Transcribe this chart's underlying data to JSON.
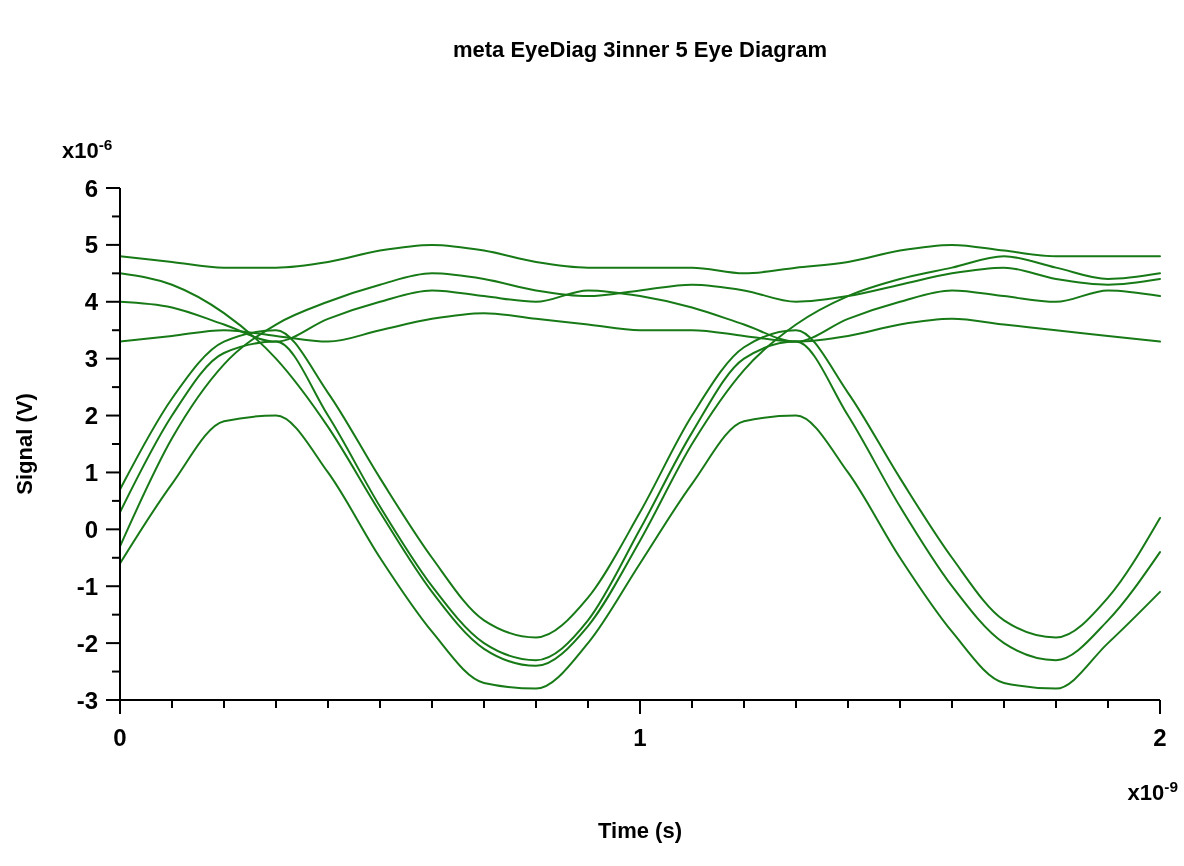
{
  "chart_data": {
    "type": "line",
    "title": "meta EyeDiag 3inner 5 Eye Diagram",
    "xlabel": "Time (s)",
    "ylabel": "Signal (V)",
    "annotations": [
      "x10$^{-6}$",
      "x10$^{-9}$"
    ],
    "x": [
      0,
      0.1,
      0.2,
      0.3,
      0.4,
      0.5,
      0.6,
      0.7,
      0.8,
      0.9,
      1.0,
      1.1,
      1.2,
      1.3,
      1.4,
      1.5,
      1.6,
      1.7,
      1.8,
      1.9,
      2.0
    ],
    "series": [
      {
        "color": "#177a17",
        "values": [
          -0.6,
          0.8,
          1.9,
          2.0,
          1.0,
          -0.5,
          -1.8,
          -2.7,
          -2.8,
          -2.0,
          -0.6,
          0.8,
          1.9,
          2.0,
          1.0,
          -0.5,
          -1.8,
          -2.7,
          -2.8,
          -2.0,
          -1.1
        ]
      },
      {
        "color": "#177a17",
        "values": [
          0.7,
          2.3,
          3.3,
          3.5,
          2.4,
          0.9,
          -0.5,
          -1.6,
          -1.9,
          -1.2,
          0.3,
          2.0,
          3.2,
          3.5,
          2.4,
          0.9,
          -0.5,
          -1.6,
          -1.9,
          -1.2,
          0.2
        ]
      },
      {
        "color": "#177a17",
        "values": [
          -0.3,
          1.6,
          2.9,
          3.6,
          4.0,
          4.3,
          4.5,
          4.4,
          4.2,
          4.1,
          4.2,
          4.3,
          4.2,
          4.0,
          4.1,
          4.3,
          4.5,
          4.6,
          4.4,
          4.3,
          4.4
        ]
      },
      {
        "color": "#177a17",
        "values": [
          4.5,
          4.3,
          3.8,
          3.0,
          1.8,
          0.3,
          -1.1,
          -2.1,
          -2.4,
          -1.7,
          -0.2,
          1.5,
          2.8,
          3.6,
          4.1,
          4.4,
          4.6,
          4.8,
          4.6,
          4.4,
          4.5
        ]
      },
      {
        "color": "#177a17",
        "values": [
          4.8,
          4.7,
          4.6,
          4.6,
          4.7,
          4.9,
          5.0,
          4.9,
          4.7,
          4.6,
          4.6,
          4.6,
          4.5,
          4.6,
          4.7,
          4.9,
          5.0,
          4.9,
          4.8,
          4.8,
          4.8
        ]
      },
      {
        "color": "#177a17",
        "values": [
          3.3,
          3.4,
          3.5,
          3.4,
          3.3,
          3.5,
          3.7,
          3.8,
          3.7,
          3.6,
          3.5,
          3.5,
          3.4,
          3.3,
          3.4,
          3.6,
          3.7,
          3.6,
          3.5,
          3.4,
          3.3
        ]
      },
      {
        "color": "#177a17",
        "values": [
          4.0,
          3.9,
          3.6,
          3.3,
          3.7,
          4.0,
          4.2,
          4.1,
          4.0,
          4.2,
          4.1,
          3.9,
          3.6,
          3.3,
          3.7,
          4.0,
          4.2,
          4.1,
          4.0,
          4.2,
          4.1
        ]
      },
      {
        "color": "#177a17",
        "values": [
          0.3,
          2.0,
          3.1,
          3.3,
          2.0,
          0.4,
          -1.0,
          -2.0,
          -2.3,
          -1.6,
          0.0,
          1.7,
          3.0,
          3.3,
          2.0,
          0.4,
          -1.0,
          -2.0,
          -2.3,
          -1.6,
          -0.4
        ]
      }
    ],
    "xlim": [
      0,
      2
    ],
    "ylim": [
      -3,
      6
    ],
    "xticks": [
      0,
      {
        "value": 0.1,
        "label": null
      },
      {
        "value": 0.2,
        "label": null
      },
      {
        "value": 0.3,
        "label": null
      },
      {
        "value": 0.4,
        "label": null
      },
      {
        "value": 0.5,
        "label": null
      },
      {
        "value": 0.6,
        "label": null
      },
      {
        "value": 0.7,
        "label": null
      },
      {
        "value": 0.8,
        "label": null
      },
      {
        "value": 0.9,
        "label": null
      },
      1,
      {
        "value": 1.1,
        "label": null
      },
      {
        "value": 1.2,
        "label": null
      },
      {
        "value": 1.3,
        "label": null
      },
      {
        "value": 1.4,
        "label": null
      },
      {
        "value": 1.5,
        "label": null
      },
      {
        "value": 1.6,
        "label": null
      },
      {
        "value": 1.7,
        "label": null
      },
      {
        "value": 1.8,
        "label": null
      },
      {
        "value": 1.9,
        "label": null
      },
      2
    ],
    "yticks": [
      -3,
      {
        "value": -2.5,
        "label": null
      },
      -2,
      {
        "value": -1.5,
        "label": null
      },
      -1,
      {
        "value": -0.5,
        "label": null
      },
      0,
      {
        "value": 0.5,
        "label": null
      },
      1,
      {
        "value": 1.5,
        "label": null
      },
      2,
      {
        "value": 2.5,
        "label": null
      },
      3,
      {
        "value": 3.5,
        "label": null
      },
      4,
      {
        "value": 4.5,
        "label": null
      },
      5,
      {
        "value": 5.5,
        "label": null
      },
      6
    ]
  }
}
